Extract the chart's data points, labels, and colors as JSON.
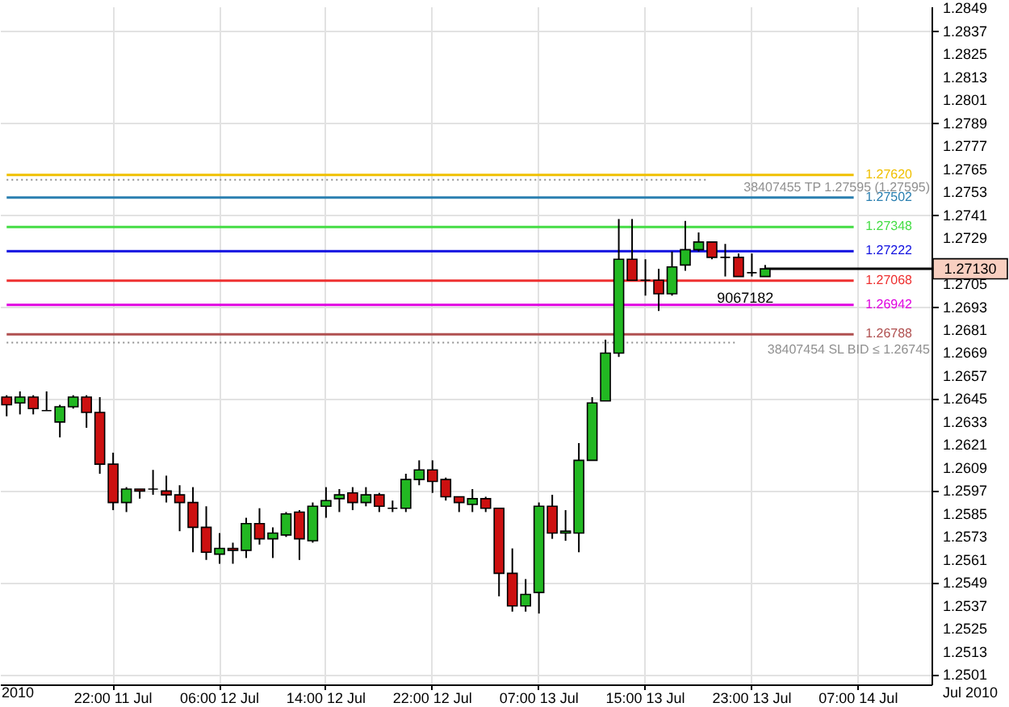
{
  "chart_data": {
    "type": "candlestick",
    "categories": [
      null,
      null,
      null,
      null,
      null,
      null,
      null,
      null,
      "22:00 11 Jul",
      null,
      null,
      null,
      null,
      null,
      null,
      null,
      "06:00 12 Jul",
      null,
      null,
      null,
      null,
      null,
      null,
      null,
      "14:00 12 Jul",
      null,
      null,
      null,
      null,
      null,
      null,
      null,
      "22:00 12 Jul",
      null,
      null,
      null,
      null,
      null,
      null,
      null,
      "07:00 13 Jul",
      null,
      null,
      null,
      null,
      null,
      null,
      null,
      "15:00 13 Jul",
      null,
      null,
      null,
      null,
      null,
      null,
      null,
      "23:00 13 Jul",
      null,
      null,
      null,
      null,
      null,
      null,
      null,
      "07:00 14 Jul",
      null,
      null,
      null,
      null,
      null
    ],
    "ohlc": [
      [
        1.2646,
        1.2647,
        1.2636,
        1.2642
      ],
      [
        1.2643,
        1.2649,
        1.2637,
        1.2646
      ],
      [
        1.2646,
        1.2647,
        1.2637,
        1.264
      ],
      [
        1.2639,
        1.2649,
        1.2639,
        1.2639
      ],
      [
        1.2633,
        1.2642,
        1.2625,
        1.2641
      ],
      [
        1.2641,
        1.2647,
        1.264,
        1.2646
      ],
      [
        1.2646,
        1.2647,
        1.263,
        1.2638
      ],
      [
        1.2638,
        1.2646,
        1.2606,
        1.2611
      ],
      [
        1.2611,
        1.2617,
        1.2587,
        1.2591
      ],
      [
        1.2591,
        1.2599,
        1.2586,
        1.2598
      ],
      [
        1.2598,
        1.2598,
        1.2593,
        1.2597
      ],
      [
        1.2598,
        1.2608,
        1.2595,
        1.2598
      ],
      [
        1.2597,
        1.2605,
        1.2591,
        1.2595
      ],
      [
        1.2595,
        1.26,
        1.2576,
        1.2591
      ],
      [
        1.2591,
        1.2599,
        1.2565,
        1.2578
      ],
      [
        1.2578,
        1.2589,
        1.2561,
        1.2565
      ],
      [
        1.2564,
        1.2575,
        1.2559,
        1.2567
      ],
      [
        1.2567,
        1.257,
        1.2559,
        1.2566
      ],
      [
        1.2566,
        1.2583,
        1.2562,
        1.258
      ],
      [
        1.258,
        1.2588,
        1.2569,
        1.2572
      ],
      [
        1.2572,
        1.2578,
        1.2562,
        1.2575
      ],
      [
        1.2574,
        1.2586,
        1.2573,
        1.2585
      ],
      [
        1.2586,
        1.2587,
        1.2561,
        1.2572
      ],
      [
        1.2571,
        1.2591,
        1.257,
        1.2589
      ],
      [
        1.2589,
        1.2599,
        1.2583,
        1.2592
      ],
      [
        1.2593,
        1.2598,
        1.2586,
        1.2595
      ],
      [
        1.2596,
        1.2599,
        1.2587,
        1.2591
      ],
      [
        1.2591,
        1.2599,
        1.2589,
        1.2595
      ],
      [
        1.2595,
        1.2596,
        1.2586,
        1.2589
      ],
      [
        1.2588,
        1.2592,
        1.2586,
        1.2588
      ],
      [
        1.2588,
        1.2606,
        1.2586,
        1.2603
      ],
      [
        1.2603,
        1.2613,
        1.26,
        1.2608
      ],
      [
        1.2608,
        1.2613,
        1.2596,
        1.2602
      ],
      [
        1.2603,
        1.2604,
        1.2592,
        1.2594
      ],
      [
        1.2594,
        1.2594,
        1.2586,
        1.2591
      ],
      [
        1.259,
        1.2598,
        1.2586,
        1.2593
      ],
      [
        1.2593,
        1.2594,
        1.2586,
        1.2588
      ],
      [
        1.2588,
        1.2588,
        1.2542,
        1.2554
      ],
      [
        1.2554,
        1.2567,
        1.2534,
        1.2537
      ],
      [
        1.2537,
        1.2551,
        1.2534,
        1.2543
      ],
      [
        1.2544,
        1.2591,
        1.2533,
        1.2589
      ],
      [
        1.2589,
        1.2595,
        1.2572,
        1.2575
      ],
      [
        1.2575,
        1.2587,
        1.2571,
        1.2576
      ],
      [
        1.2575,
        1.2622,
        1.2565,
        1.2613
      ],
      [
        1.2613,
        1.2646,
        1.2613,
        1.2643
      ],
      [
        1.2644,
        1.2676,
        1.2644,
        1.2669
      ],
      [
        1.2669,
        1.2739,
        1.2667,
        1.2718
      ],
      [
        1.2718,
        1.2739,
        1.2707,
        1.2707
      ],
      [
        1.2707,
        1.2718,
        1.2699,
        1.2707
      ],
      [
        1.2707,
        1.2713,
        1.2691,
        1.27
      ],
      [
        1.27,
        1.2722,
        1.2699,
        1.2714
      ],
      [
        1.2715,
        1.2738,
        1.2712,
        1.2723
      ],
      [
        1.2723,
        1.2732,
        1.2722,
        1.2727
      ],
      [
        1.2727,
        1.2727,
        1.2718,
        1.2719
      ],
      [
        1.2719,
        1.2726,
        1.2709,
        1.2719
      ],
      [
        1.2719,
        1.2721,
        1.2709,
        1.2709
      ],
      [
        1.2711,
        1.2721,
        1.2709,
        1.2711
      ],
      [
        1.2709,
        1.2715,
        1.2709,
        1.2713
      ],
      null,
      null,
      null,
      null,
      null,
      null,
      null,
      null,
      null,
      null,
      null,
      null
    ],
    "colors": [
      "#cc1010",
      "#22b822",
      "#cc1010",
      "#000000",
      "#22b822",
      "#22b822",
      "#cc1010",
      "#cc1010",
      "#cc1010",
      "#22b822",
      "#cc1010",
      "#000000",
      "#cc1010",
      "#cc1010",
      "#cc1010",
      "#cc1010",
      "#22b822",
      "#cc1010",
      "#22b822",
      "#cc1010",
      "#22b822",
      "#22b822",
      "#cc1010",
      "#22b822",
      "#22b822",
      "#22b822",
      "#cc1010",
      "#22b822",
      "#cc1010",
      "#000000",
      "#22b822",
      "#22b822",
      "#cc1010",
      "#cc1010",
      "#cc1010",
      "#22b822",
      "#cc1010",
      "#cc1010",
      "#cc1010",
      "#22b822",
      "#22b822",
      "#cc1010",
      "#22b822",
      "#22b822",
      "#22b822",
      "#22b822",
      "#22b822",
      "#cc1010",
      "#000000",
      "#cc1010",
      "#22b822",
      "#22b822",
      "#22b822",
      "#cc1010",
      "#000000",
      "#cc1010",
      "#000000",
      "#22b822",
      null,
      null,
      null,
      null,
      null,
      null,
      null,
      null,
      null,
      null,
      null,
      null
    ],
    "ylim": [
      1.2496,
      1.285
    ],
    "yticks": [
      1.2501,
      1.2513,
      1.2525,
      1.2537,
      1.2549,
      1.2561,
      1.2573,
      1.2585,
      1.2597,
      1.2609,
      1.2621,
      1.2633,
      1.2645,
      1.2657,
      1.2669,
      1.2681,
      1.2693,
      1.2705,
      {
        "value": 1.2713,
        "label": "1.27130"
      },
      1.2729,
      1.2741,
      1.2753,
      1.2765,
      1.2777,
      1.2789,
      1.2801,
      1.2813,
      1.2825,
      1.2837,
      1.2849
    ],
    "grid": true,
    "ref_lines": [
      {
        "axis": "y",
        "value": 1.2762,
        "label": "1.27620",
        "color": "#f0c000"
      },
      {
        "axis": "y",
        "value": 1.27595,
        "label": "38407455 TP 1.27595 (1.27595)",
        "color": "#909090",
        "line_style": "dotted"
      },
      {
        "axis": "y",
        "value": 1.27502,
        "label": "1.27502",
        "color": "#2a7fb0"
      },
      {
        "axis": "y",
        "value": 1.27348,
        "label": "1.27348",
        "color": "#44dd44"
      },
      {
        "axis": "y",
        "value": 1.27222,
        "label": "1.27222",
        "color": "#1010e0"
      },
      {
        "axis": "y",
        "value": 1.2713,
        "color": "#000000"
      },
      {
        "axis": "y",
        "value": 1.27068,
        "label": "1.27068",
        "color": "#ee3030"
      },
      {
        "axis": "y",
        "value": 1.26942,
        "label": "1.26942",
        "color": "#e000e0"
      },
      {
        "axis": "y",
        "value": 1.26788,
        "label": "1.26788",
        "color": "#b05050"
      },
      {
        "axis": "y",
        "value": 1.26745,
        "label": "38407454 SL BID ≤ 1.26745",
        "color": "#909090",
        "line_style": "dotted"
      }
    ],
    "annotations": [
      {
        "text": "9067182",
        "y": 1.2698
      },
      "2010",
      "Jul 2010"
    ]
  }
}
